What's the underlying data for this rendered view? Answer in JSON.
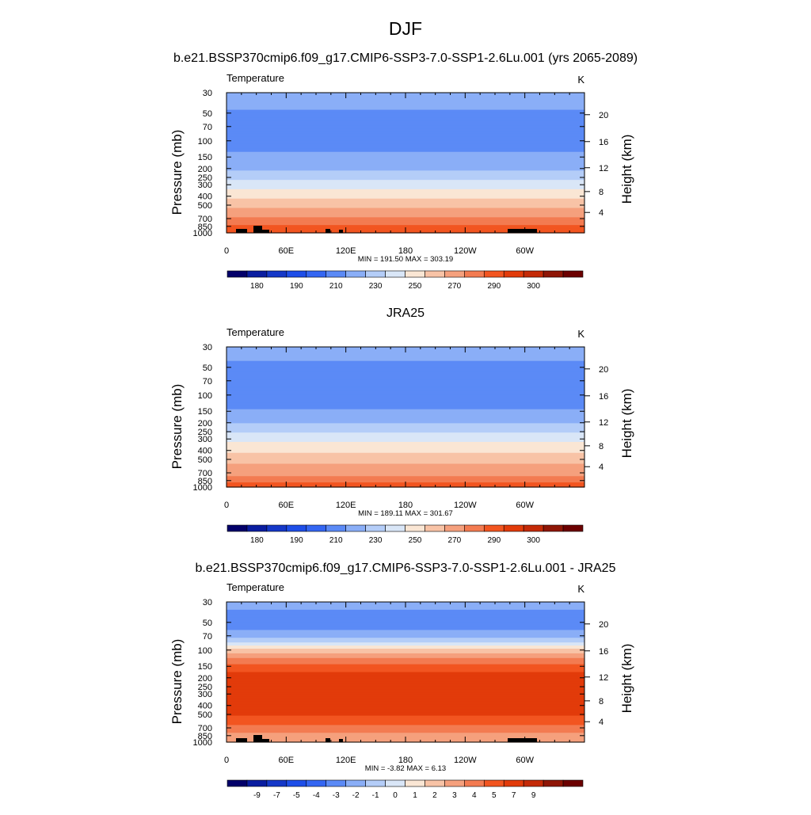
{
  "page": {
    "title": "DJF"
  },
  "chart_data": [
    {
      "type": "heatmap",
      "title": "b.e21.BSSP370cmip6.f09_g17.CMIP6-SSP3-7.0-SSP1-2.6Lu.001 (yrs 2065-2089)",
      "left_label": "Temperature",
      "right_label": "K",
      "xlabel": "",
      "ylabel": "Pressure (mb)",
      "y2label": "Height (km)",
      "x_ticks": [
        "0",
        "60E",
        "120E",
        "180",
        "120W",
        "60W"
      ],
      "y_ticks": [
        "30",
        "50",
        "70",
        "100",
        "150",
        "200",
        "250",
        "300",
        "400",
        "500",
        "700",
        "850",
        "1000"
      ],
      "y2_ticks": [
        "20",
        "16",
        "12",
        "8",
        "4"
      ],
      "y_scale": "log",
      "ylim": [
        1000,
        30
      ],
      "min_text": "MIN = 191.50  MAX = 303.19",
      "min": 191.5,
      "max": 303.19,
      "colorbar_labels": [
        "180",
        "190",
        "210",
        "230",
        "250",
        "270",
        "290",
        "300"
      ],
      "colorbar_levels": [
        175,
        180,
        185,
        190,
        200,
        210,
        220,
        230,
        240,
        250,
        260,
        270,
        280,
        290,
        295,
        300,
        305
      ],
      "profile": [
        [
          30,
          217
        ],
        [
          40,
          214
        ],
        [
          50,
          208
        ],
        [
          70,
          206
        ],
        [
          100,
          206
        ],
        [
          130,
          210
        ],
        [
          150,
          213
        ],
        [
          200,
          218
        ],
        [
          250,
          226
        ],
        [
          300,
          236
        ],
        [
          400,
          248
        ],
        [
          500,
          257
        ],
        [
          700,
          272
        ],
        [
          850,
          282
        ],
        [
          1000,
          290
        ]
      ]
    },
    {
      "type": "heatmap",
      "title": "JRA25",
      "left_label": "Temperature",
      "right_label": "K",
      "xlabel": "",
      "ylabel": "Pressure (mb)",
      "y2label": "Height (km)",
      "x_ticks": [
        "0",
        "60E",
        "120E",
        "180",
        "120W",
        "60W"
      ],
      "y_ticks": [
        "30",
        "50",
        "70",
        "100",
        "150",
        "200",
        "250",
        "300",
        "400",
        "500",
        "700",
        "850",
        "1000"
      ],
      "y2_ticks": [
        "20",
        "16",
        "12",
        "8",
        "4"
      ],
      "y_scale": "log",
      "ylim": [
        1000,
        30
      ],
      "min_text": "MIN = 189.11  MAX = 301.67",
      "min": 189.11,
      "max": 301.67,
      "colorbar_labels": [
        "180",
        "190",
        "210",
        "230",
        "250",
        "270",
        "290",
        "300"
      ],
      "colorbar_levels": [
        175,
        180,
        185,
        190,
        200,
        210,
        220,
        230,
        240,
        250,
        260,
        270,
        280,
        290,
        295,
        300,
        305
      ],
      "profile": [
        [
          30,
          214
        ],
        [
          40,
          211
        ],
        [
          50,
          207
        ],
        [
          70,
          205
        ],
        [
          100,
          204
        ],
        [
          130,
          207
        ],
        [
          150,
          211
        ],
        [
          200,
          219
        ],
        [
          250,
          229
        ],
        [
          300,
          238
        ],
        [
          400,
          248
        ],
        [
          500,
          256
        ],
        [
          700,
          267
        ],
        [
          850,
          276
        ],
        [
          1000,
          286
        ]
      ]
    },
    {
      "type": "heatmap",
      "title": "b.e21.BSSP370cmip6.f09_g17.CMIP6-SSP3-7.0-SSP1-2.6Lu.001 - JRA25",
      "left_label": "Temperature",
      "right_label": "K",
      "xlabel": "",
      "ylabel": "Pressure (mb)",
      "y2label": "Height (km)",
      "x_ticks": [
        "0",
        "60E",
        "120E",
        "180",
        "120W",
        "60W"
      ],
      "y_ticks": [
        "30",
        "50",
        "70",
        "100",
        "150",
        "200",
        "250",
        "300",
        "400",
        "500",
        "700",
        "850",
        "1000"
      ],
      "y2_ticks": [
        "20",
        "16",
        "12",
        "8",
        "4"
      ],
      "y_scale": "log",
      "ylim": [
        1000,
        30
      ],
      "min_text": "MIN =  -3.82  MAX =   6.13",
      "min": -3.82,
      "max": 6.13,
      "colorbar_labels": [
        "-9",
        "-7",
        "-5",
        "-4",
        "-3",
        "-2",
        "-1",
        "0",
        "1",
        "2",
        "3",
        "4",
        "5",
        "7",
        "9"
      ],
      "colorbar_levels": [
        -11,
        -9,
        -7,
        -5,
        -4,
        -3,
        -2,
        -1,
        0,
        1,
        2,
        3,
        4,
        5,
        7,
        9,
        11
      ],
      "profile": [
        [
          30,
          -2.3
        ],
        [
          40,
          -3.3
        ],
        [
          60,
          -3.1
        ],
        [
          80,
          -1.5
        ],
        [
          100,
          1.5
        ],
        [
          150,
          4.5
        ],
        [
          200,
          5.6
        ],
        [
          300,
          5.6
        ],
        [
          400,
          5.0
        ],
        [
          500,
          5.1
        ],
        [
          700,
          3.6
        ],
        [
          850,
          2.6
        ],
        [
          1000,
          2.0
        ]
      ]
    }
  ],
  "colormap": [
    "#03006a",
    "#0a1da0",
    "#1538c8",
    "#1e4ee8",
    "#3466f2",
    "#5b8af6",
    "#8aaef7",
    "#b4cdf8",
    "#d9e6f7",
    "#fae6d4",
    "#f8c3a6",
    "#f5a07d",
    "#f37b51",
    "#f25520",
    "#e23b0a",
    "#c42a07",
    "#8f1606",
    "#6c0000"
  ]
}
